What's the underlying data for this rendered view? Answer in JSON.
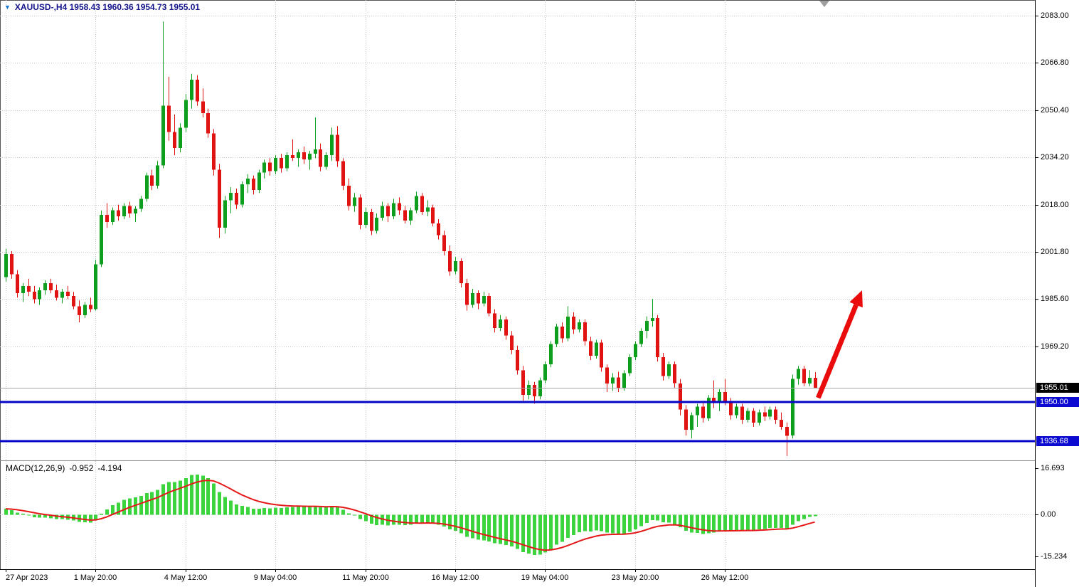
{
  "header": {
    "dropdown_icon": "▼",
    "symbol_info": "XAUUSD-,H4  1958.43 1960.36 1954.73 1955.01"
  },
  "colors": {
    "background": "#ffffff",
    "grid": "#c8c8c8",
    "candle_up": "#0e9e1e",
    "candle_down": "#e01212",
    "macd_bar": "#3cd43c",
    "macd_signal": "#e51919",
    "bid_line": "#a8a8a8",
    "bid_badge_bg": "#000000",
    "level_line": "#0404c8",
    "level_badge_bg": "#0a0ad0",
    "arrow": "#ea0c0c",
    "symbol_text": "#13138c",
    "divider": "#8f8f8f",
    "dropdown_icon_color": "#1878cf",
    "shift_marker": "#9e9e9e"
  },
  "price_axis": {
    "ticks": [
      {
        "label": "2083.00",
        "value": 2083.0
      },
      {
        "label": "2066.80",
        "value": 2066.8
      },
      {
        "label": "2050.40",
        "value": 2050.4
      },
      {
        "label": "2034.20",
        "value": 2034.2
      },
      {
        "label": "2018.00",
        "value": 2018.0
      },
      {
        "label": "2001.80",
        "value": 2001.8
      },
      {
        "label": "1985.60",
        "value": 1985.6
      },
      {
        "label": "1969.20",
        "value": 1969.2
      }
    ],
    "bid_label": {
      "text": "1955.01"
    }
  },
  "time_axis": {
    "labels": [
      {
        "text": "27 Apr 2023",
        "index": 0
      },
      {
        "text": "1 May 20:00",
        "index": 16
      },
      {
        "text": "4 May 12:00",
        "index": 32
      },
      {
        "text": "9 May 04:00",
        "index": 48
      },
      {
        "text": "11 May 20:00",
        "index": 64
      },
      {
        "text": "16 May 12:00",
        "index": 80
      },
      {
        "text": "19 May 04:00",
        "index": 96
      },
      {
        "text": "23 May 20:00",
        "index": 112
      },
      {
        "text": "26 May 12:00",
        "index": 128
      }
    ]
  },
  "chart_data": {
    "type": "candlestick",
    "symbol": "XAUUSD-",
    "timeframe": "H4",
    "ohlc_current": {
      "open": 1958.43,
      "high": 1960.36,
      "low": 1954.73,
      "close": 1955.01
    },
    "price_ylim": [
      1930.0,
      2088.4
    ],
    "macd_ylim": [
      -19.8,
      19.3
    ],
    "bid_price": 1955.01,
    "levels": [
      {
        "label": "1950.00",
        "price": 1950.0
      },
      {
        "label": "1936.68",
        "price": 1936.68
      }
    ],
    "arrow": {
      "from": {
        "index": 144.6,
        "price": 1951.5
      },
      "to": {
        "index": 152.4,
        "price": 1988.5
      }
    },
    "macd": {
      "label": "MACD(12,26,9)",
      "value_main": "-0.952",
      "value_signal": "-4.194",
      "params": [
        12,
        26,
        9
      ],
      "seed_fast": 1997.5,
      "seed_slow": 1995.5,
      "ticks": [
        {
          "label": "16.693",
          "value": 16.693
        },
        {
          "label": "0.00",
          "value": 0
        },
        {
          "label": "-15.234",
          "value": -15.234
        }
      ]
    },
    "candles": [
      [
        1993,
        2002.8,
        1991.5,
        2001
      ],
      [
        2001,
        2002,
        1992.5,
        1994
      ],
      [
        1994,
        1995.5,
        1986,
        1987.5
      ],
      [
        1987.5,
        1991,
        1984.5,
        1990
      ],
      [
        1990,
        1992.5,
        1986.5,
        1988
      ],
      [
        1988,
        1990,
        1984,
        1985.5
      ],
      [
        1985.5,
        1989.5,
        1983.5,
        1988.5
      ],
      [
        1988.5,
        1992,
        1987,
        1991
      ],
      [
        1991,
        1992.5,
        1987.5,
        1988.5
      ],
      [
        1988.5,
        1990.5,
        1985,
        1986
      ],
      [
        1986,
        1989,
        1984,
        1988
      ],
      [
        1988,
        1990,
        1985.5,
        1986.5
      ],
      [
        1986.5,
        1988,
        1982,
        1983
      ],
      [
        1983,
        1985,
        1977.5,
        1980
      ],
      [
        1980,
        1984.5,
        1979,
        1983.5
      ],
      [
        1983.5,
        1986,
        1981,
        1982
      ],
      [
        1982,
        1999,
        1981.5,
        1997.5
      ],
      [
        1997.5,
        2016,
        1996.5,
        2014.5
      ],
      [
        2014.5,
        2018.5,
        2010,
        2012
      ],
      [
        2012,
        2017,
        2011,
        2016
      ],
      [
        2016,
        2018,
        2012.5,
        2014
      ],
      [
        2014,
        2018.5,
        2013,
        2017.5
      ],
      [
        2017.5,
        2019,
        2013.5,
        2015
      ],
      [
        2015,
        2017.5,
        2012,
        2016.5
      ],
      [
        2016.5,
        2021,
        2015.5,
        2020
      ],
      [
        2020,
        2029,
        2019,
        2028
      ],
      [
        2028,
        2030,
        2023,
        2024.5
      ],
      [
        2024.5,
        2033,
        2023.5,
        2031.5
      ],
      [
        2031.5,
        2081,
        2030.5,
        2052
      ],
      [
        2052,
        2062,
        2040,
        2043
      ],
      [
        2043,
        2049,
        2035,
        2037.5
      ],
      [
        2037.5,
        2046,
        2036,
        2044.5
      ],
      [
        2044.5,
        2056,
        2043,
        2054
      ],
      [
        2054,
        2063,
        2051,
        2061
      ],
      [
        2061,
        2062.5,
        2052,
        2053.5
      ],
      [
        2053.5,
        2058,
        2048,
        2049.5
      ],
      [
        2049.5,
        2051,
        2041,
        2042.5
      ],
      [
        2042.5,
        2044,
        2028,
        2030
      ],
      [
        2030,
        2032,
        2006.5,
        2010
      ],
      [
        2010,
        2021,
        2008,
        2019.5
      ],
      [
        2019.5,
        2024,
        2015,
        2022
      ],
      [
        2022,
        2023.5,
        2016.5,
        2018
      ],
      [
        2018,
        2026,
        2017,
        2025
      ],
      [
        2025,
        2028.5,
        2022,
        2027
      ],
      [
        2027,
        2028,
        2021.5,
        2023
      ],
      [
        2023,
        2030,
        2022,
        2029
      ],
      [
        2029,
        2033.5,
        2027,
        2032.5
      ],
      [
        2032.5,
        2034,
        2028,
        2029.5
      ],
      [
        2029.5,
        2035,
        2028.5,
        2034
      ],
      [
        2034,
        2035.5,
        2029,
        2030.5
      ],
      [
        2030.5,
        2036,
        2029.5,
        2035
      ],
      [
        2035,
        2040.5,
        2033,
        2034
      ],
      [
        2034,
        2037,
        2031,
        2036
      ],
      [
        2036,
        2038,
        2032,
        2033.5
      ],
      [
        2033.5,
        2036.5,
        2030,
        2035.5
      ],
      [
        2035.5,
        2048,
        2034,
        2037
      ],
      [
        2037,
        2039,
        2029.5,
        2031
      ],
      [
        2031,
        2036,
        2030,
        2035
      ],
      [
        2035,
        2044.5,
        2033,
        2042
      ],
      [
        2042,
        2045,
        2031,
        2033
      ],
      [
        2033,
        2034,
        2023,
        2024.5
      ],
      [
        2024.5,
        2027,
        2016,
        2017.5
      ],
      [
        2017.5,
        2022,
        2015.5,
        2020.5
      ],
      [
        2020.5,
        2021.5,
        2009.5,
        2011
      ],
      [
        2011,
        2017,
        2010,
        2015.5
      ],
      [
        2015.5,
        2016.5,
        2007.5,
        2009
      ],
      [
        2009,
        2015,
        2008,
        2013.5
      ],
      [
        2013.5,
        2019,
        2012.5,
        2017.5
      ],
      [
        2017.5,
        2018.5,
        2012,
        2014
      ],
      [
        2014,
        2020,
        2013,
        2018.5
      ],
      [
        2018.5,
        2020.5,
        2014.5,
        2016
      ],
      [
        2016,
        2017.5,
        2011.5,
        2012.5
      ],
      [
        2012.5,
        2017,
        2011,
        2016
      ],
      [
        2016,
        2022.5,
        2015,
        2021
      ],
      [
        2021,
        2022,
        2014.5,
        2015.5
      ],
      [
        2015.5,
        2019.5,
        2014,
        2017
      ],
      [
        2017,
        2018,
        2010.5,
        2011.5
      ],
      [
        2011.5,
        2013,
        2006,
        2007.5
      ],
      [
        2007.5,
        2009,
        2000.5,
        2002
      ],
      [
        2002,
        2004,
        1993.5,
        1995
      ],
      [
        1995,
        2000,
        1994,
        1998.5
      ],
      [
        1998.5,
        1999.5,
        1989.5,
        1991
      ],
      [
        1991,
        1992.5,
        1981.5,
        1983.5
      ],
      [
        1983.5,
        1989,
        1982.5,
        1987.5
      ],
      [
        1987.5,
        1988.5,
        1982,
        1984
      ],
      [
        1984,
        1988,
        1983,
        1986.5
      ],
      [
        1986.5,
        1987.5,
        1979.5,
        1980.5
      ],
      [
        1980.5,
        1982,
        1974,
        1975.5
      ],
      [
        1975.5,
        1980,
        1974.5,
        1978.5
      ],
      [
        1978.5,
        1979.5,
        1971.5,
        1973
      ],
      [
        1973,
        1974.5,
        1966.5,
        1968
      ],
      [
        1968,
        1969.5,
        1959.5,
        1961
      ],
      [
        1961,
        1962.5,
        1950.5,
        1952.5
      ],
      [
        1952.5,
        1957.5,
        1951,
        1956
      ],
      [
        1956,
        1957,
        1949.5,
        1952
      ],
      [
        1952,
        1958.5,
        1951,
        1957.5
      ],
      [
        1957.5,
        1964,
        1956.5,
        1963
      ],
      [
        1963,
        1971,
        1962,
        1970
      ],
      [
        1970,
        1977,
        1969,
        1976
      ],
      [
        1976,
        1977.5,
        1970.5,
        1972
      ],
      [
        1972,
        1983,
        1971,
        1979.5
      ],
      [
        1979.5,
        1981,
        1973.5,
        1975
      ],
      [
        1975,
        1978.5,
        1974,
        1977.5
      ],
      [
        1977.5,
        1978.5,
        1969.5,
        1971
      ],
      [
        1971,
        1972.5,
        1964.5,
        1966
      ],
      [
        1966,
        1971.5,
        1965,
        1970.5
      ],
      [
        1970.5,
        1971.5,
        1960.5,
        1962
      ],
      [
        1962,
        1963,
        1953.5,
        1956.5
      ],
      [
        1956.5,
        1960,
        1954,
        1958.5
      ],
      [
        1958.5,
        1960.5,
        1953.5,
        1955
      ],
      [
        1955,
        1961,
        1954,
        1960
      ],
      [
        1960,
        1966.5,
        1959,
        1965.5
      ],
      [
        1965.5,
        1971,
        1964.5,
        1970
      ],
      [
        1970,
        1975.5,
        1969,
        1974.5
      ],
      [
        1974.5,
        1979.5,
        1972,
        1978
      ],
      [
        1978,
        1985.5,
        1976,
        1979
      ],
      [
        1979,
        1980,
        1964,
        1965.5
      ],
      [
        1965.5,
        1967,
        1957.5,
        1959
      ],
      [
        1959,
        1964,
        1958,
        1963
      ],
      [
        1963,
        1964,
        1955,
        1956.5
      ],
      [
        1956.5,
        1958,
        1945.5,
        1947.5
      ],
      [
        1947.5,
        1949,
        1938.5,
        1940.5
      ],
      [
        1940.5,
        1946.5,
        1937.5,
        1945.5
      ],
      [
        1945.5,
        1949.5,
        1941.5,
        1948.5
      ],
      [
        1948.5,
        1950.5,
        1943,
        1944.5
      ],
      [
        1944.5,
        1952.5,
        1943.5,
        1951.5
      ],
      [
        1951.5,
        1957.5,
        1948,
        1950
      ],
      [
        1950,
        1954.5,
        1947,
        1953.5
      ],
      [
        1953.5,
        1958,
        1949,
        1950.5
      ],
      [
        1950.5,
        1951.5,
        1944,
        1945.5
      ],
      [
        1945.5,
        1949.5,
        1944.5,
        1948.5
      ],
      [
        1948.5,
        1949.5,
        1942.5,
        1944
      ],
      [
        1944,
        1948,
        1943,
        1947
      ],
      [
        1947,
        1948,
        1941.5,
        1943
      ],
      [
        1943,
        1947.5,
        1942,
        1946.5
      ],
      [
        1946.5,
        1948.5,
        1943.5,
        1945
      ],
      [
        1945,
        1948.5,
        1944,
        1947.5
      ],
      [
        1947.5,
        1948.5,
        1942.5,
        1944
      ],
      [
        1944,
        1946.5,
        1940.5,
        1941.5
      ],
      [
        1941.5,
        1943,
        1931.5,
        1938.5
      ],
      [
        1938.5,
        1959.5,
        1937.5,
        1958
      ],
      [
        1958,
        1962.5,
        1956,
        1961.5
      ],
      [
        1961.5,
        1962.5,
        1955.5,
        1956.5
      ],
      [
        1956.5,
        1961,
        1955.5,
        1958.4
      ],
      [
        1958.43,
        1960.36,
        1954.73,
        1955.01
      ]
    ]
  }
}
